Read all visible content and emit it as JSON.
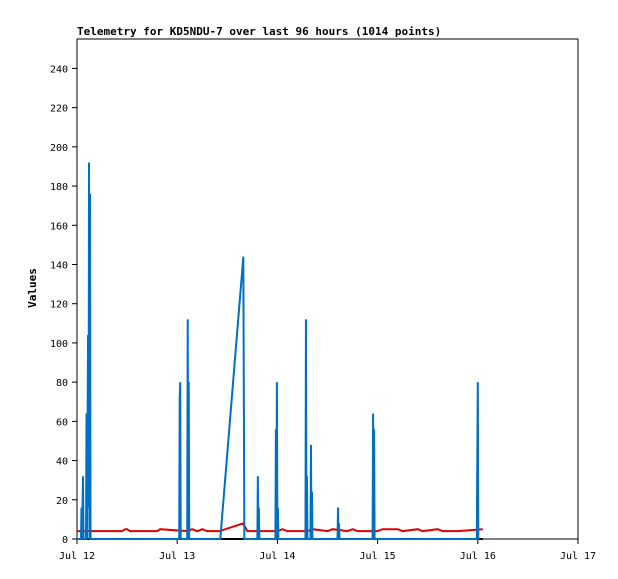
{
  "chart_data": {
    "type": "line",
    "title": "Telemetry for KD5NDU-7 over last 96 hours (1014 points)",
    "xlabel": "",
    "ylabel": "Values",
    "xlim": [
      "Jul 12",
      "Jul 17"
    ],
    "ylim": [
      0,
      255
    ],
    "x_ticks": [
      "Jul 12",
      "Jul 13",
      "Jul 14",
      "Jul 15",
      "Jul 16",
      "Jul 17"
    ],
    "y_ticks": [
      0,
      20,
      40,
      60,
      80,
      100,
      120,
      140,
      160,
      180,
      200,
      220,
      240
    ],
    "grid": false,
    "legend": "none",
    "x_unit": "days (fractional, Jul 12 = 12.0)",
    "series": [
      {
        "color": "#000000",
        "x": [
          12.0,
          16.05
        ],
        "values": [
          0,
          0
        ]
      },
      {
        "color": "#e00000",
        "x": [
          12.0,
          12.1,
          12.2,
          12.45,
          12.48,
          12.5,
          12.53,
          12.8,
          12.83,
          13.1,
          13.15,
          13.2,
          13.25,
          13.3,
          13.42,
          13.66,
          13.7,
          13.8,
          14.0,
          14.05,
          14.1,
          14.3,
          14.35,
          14.5,
          14.55,
          14.7,
          14.75,
          14.8,
          15.0,
          15.05,
          15.2,
          15.25,
          15.4,
          15.45,
          15.6,
          15.65,
          15.8,
          16.05
        ],
        "values": [
          4,
          4,
          4,
          4,
          5,
          5,
          4,
          4,
          5,
          4,
          5,
          4,
          5,
          4,
          4,
          8,
          4,
          4,
          4,
          5,
          4,
          4,
          5,
          4,
          5,
          4,
          5,
          4,
          4,
          5,
          5,
          4,
          5,
          4,
          5,
          4,
          4,
          5
        ]
      },
      {
        "color": "#0070c0",
        "x": [
          12.0,
          12.04,
          12.045,
          12.05,
          12.06,
          12.065,
          12.07,
          12.09,
          12.095,
          12.1,
          12.11,
          12.115,
          12.12,
          12.125,
          12.13,
          12.135,
          12.14,
          12.145,
          12.15,
          12.16,
          13.0,
          13.02,
          13.025,
          13.03,
          13.035,
          13.04,
          13.1,
          13.105,
          13.11,
          13.115,
          13.12,
          13.13,
          13.43,
          13.66,
          13.67,
          13.68,
          13.8,
          13.805,
          13.81,
          13.815,
          13.82,
          13.98,
          13.985,
          13.99,
          13.995,
          14.0,
          14.005,
          14.01,
          14.015,
          14.02,
          14.28,
          14.285,
          14.29,
          14.295,
          14.3,
          14.33,
          14.335,
          14.34,
          14.345,
          14.35,
          14.6,
          14.605,
          14.61,
          14.615,
          14.62,
          14.95,
          14.955,
          14.96,
          14.965,
          14.97,
          15.99,
          15.995,
          16.0,
          16.005,
          16.01
        ],
        "values": [
          0,
          0,
          16,
          0,
          32,
          0,
          0,
          0,
          64,
          0,
          104,
          16,
          192,
          0,
          176,
          0,
          0,
          0,
          0,
          0,
          0,
          0,
          72,
          80,
          0,
          0,
          0,
          112,
          0,
          80,
          0,
          0,
          0,
          144,
          0,
          0,
          0,
          32,
          0,
          16,
          0,
          0,
          56,
          0,
          80,
          0,
          16,
          0,
          0,
          0,
          0,
          112,
          0,
          32,
          0,
          0,
          48,
          0,
          24,
          0,
          0,
          16,
          0,
          8,
          0,
          0,
          64,
          0,
          56,
          0,
          0,
          40,
          80,
          0,
          0
        ]
      }
    ]
  }
}
